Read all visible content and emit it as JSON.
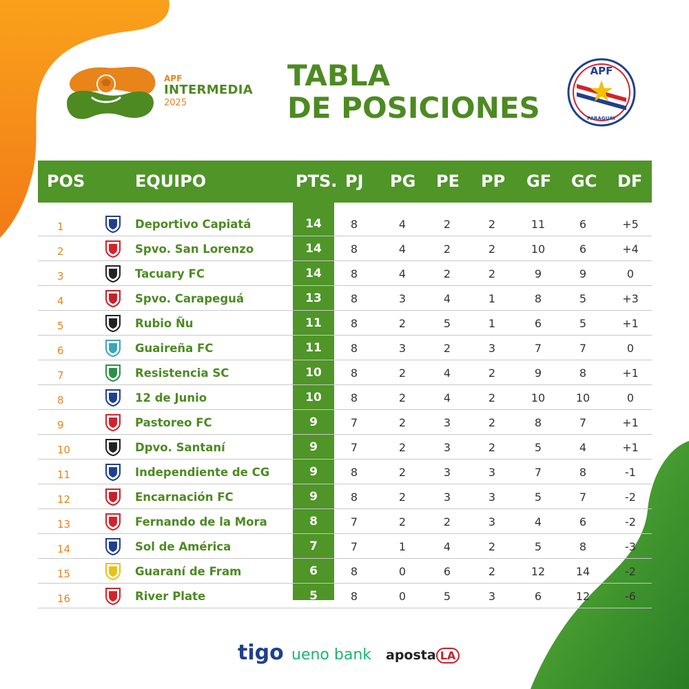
{
  "header": {
    "logo_line1": "APF",
    "logo_line2": "INTERMEDIA",
    "logo_line3": "2025",
    "title_line1": "TABLA",
    "title_line2": "DE POSICIONES",
    "apf_top": "APF",
    "apf_bottom": "PARAGUAY"
  },
  "columns": {
    "pos": "POS",
    "team": "EQUIPO",
    "pts": "PTS.",
    "pj": "PJ",
    "pg": "PG",
    "pe": "PE",
    "pp": "PP",
    "gf": "GF",
    "gc": "GC",
    "df": "DF"
  },
  "rows": [
    {
      "pos": "1",
      "team": "Deportivo Capiatá",
      "pts": "14",
      "pj": "8",
      "pg": "4",
      "pe": "2",
      "pp": "2",
      "gf": "11",
      "gc": "6",
      "df": "+5",
      "crest_color": "#1f3f8f"
    },
    {
      "pos": "2",
      "team": "Spvo. San Lorenzo",
      "pts": "14",
      "pj": "8",
      "pg": "4",
      "pe": "2",
      "pp": "2",
      "gf": "10",
      "gc": "6",
      "df": "+4",
      "crest_color": "#d2232a"
    },
    {
      "pos": "3",
      "team": "Tacuary FC",
      "pts": "14",
      "pj": "8",
      "pg": "4",
      "pe": "2",
      "pp": "2",
      "gf": "9",
      "gc": "9",
      "df": "0",
      "crest_color": "#222222"
    },
    {
      "pos": "4",
      "team": "Spvo. Carapeguá",
      "pts": "13",
      "pj": "8",
      "pg": "3",
      "pe": "4",
      "pp": "1",
      "gf": "8",
      "gc": "5",
      "df": "+3",
      "crest_color": "#c8202a"
    },
    {
      "pos": "5",
      "team": "Rubio Ñu",
      "pts": "11",
      "pj": "8",
      "pg": "2",
      "pe": "5",
      "pp": "1",
      "gf": "6",
      "gc": "5",
      "df": "+1",
      "crest_color": "#222222"
    },
    {
      "pos": "6",
      "team": "Guaireña FC",
      "pts": "11",
      "pj": "8",
      "pg": "3",
      "pe": "2",
      "pp": "3",
      "gf": "7",
      "gc": "7",
      "df": "0",
      "crest_color": "#3aa6b9"
    },
    {
      "pos": "7",
      "team": "Resistencia SC",
      "pts": "10",
      "pj": "8",
      "pg": "2",
      "pe": "4",
      "pp": "2",
      "gf": "9",
      "gc": "8",
      "df": "+1",
      "crest_color": "#2f8f4a"
    },
    {
      "pos": "8",
      "team": "12 de Junio",
      "pts": "10",
      "pj": "8",
      "pg": "2",
      "pe": "4",
      "pp": "2",
      "gf": "10",
      "gc": "10",
      "df": "0",
      "crest_color": "#1f3f8f"
    },
    {
      "pos": "9",
      "team": "Pastoreo FC",
      "pts": "9",
      "pj": "7",
      "pg": "2",
      "pe": "3",
      "pp": "2",
      "gf": "8",
      "gc": "7",
      "df": "+1",
      "crest_color": "#d2232a"
    },
    {
      "pos": "10",
      "team": "Dpvo. Santaní",
      "pts": "9",
      "pj": "7",
      "pg": "2",
      "pe": "3",
      "pp": "2",
      "gf": "5",
      "gc": "4",
      "df": "+1",
      "crest_color": "#222222"
    },
    {
      "pos": "11",
      "team": "Independiente de CG",
      "pts": "9",
      "pj": "8",
      "pg": "2",
      "pe": "3",
      "pp": "3",
      "gf": "7",
      "gc": "8",
      "df": "-1",
      "crest_color": "#1f3f8f"
    },
    {
      "pos": "12",
      "team": "Encarnación FC",
      "pts": "9",
      "pj": "8",
      "pg": "2",
      "pe": "3",
      "pp": "3",
      "gf": "5",
      "gc": "7",
      "df": "-2",
      "crest_color": "#c8202a"
    },
    {
      "pos": "13",
      "team": "Fernando de la Mora",
      "pts": "8",
      "pj": "7",
      "pg": "2",
      "pe": "2",
      "pp": "3",
      "gf": "4",
      "gc": "6",
      "df": "-2",
      "crest_color": "#d2232a"
    },
    {
      "pos": "14",
      "team": "Sol de América",
      "pts": "7",
      "pj": "7",
      "pg": "1",
      "pe": "4",
      "pp": "2",
      "gf": "5",
      "gc": "8",
      "df": "-3",
      "crest_color": "#1f3f8f"
    },
    {
      "pos": "15",
      "team": "Guaraní de Fram",
      "pts": "6",
      "pj": "8",
      "pg": "0",
      "pe": "6",
      "pp": "2",
      "gf": "12",
      "gc": "14",
      "df": "-2",
      "crest_color": "#e6c31a"
    },
    {
      "pos": "16",
      "team": "River Plate",
      "pts": "5",
      "pj": "8",
      "pg": "0",
      "pe": "5",
      "pp": "3",
      "gf": "6",
      "gc": "12",
      "df": "-6",
      "crest_color": "#d2232a"
    }
  ],
  "sponsors": {
    "tigo": "tigo",
    "ueno": "ueno bank",
    "apuesta": "aposta",
    "apuesta_badge": "LA"
  },
  "colors": {
    "green": "#4f9528",
    "green_text": "#4d8a22",
    "orange": "#e8841a"
  }
}
